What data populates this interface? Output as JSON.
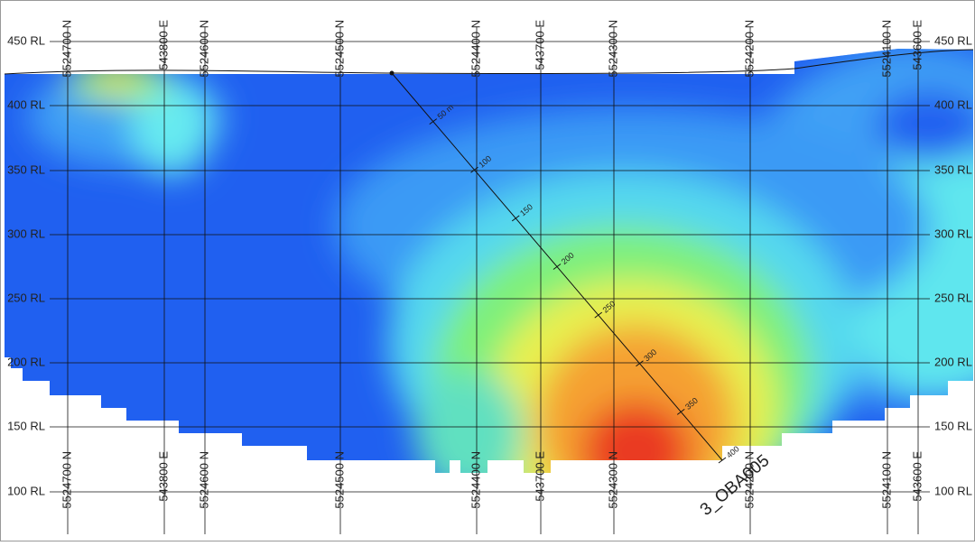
{
  "rl_labels": [
    "450 RL",
    "400 RL",
    "350 RL",
    "300 RL",
    "250 RL",
    "200 RL",
    "150 RL",
    "100 RL"
  ],
  "grid_lines": [
    {
      "label": "5524700 N"
    },
    {
      "label": "543800 E"
    },
    {
      "label": "5524600 N"
    },
    {
      "label": "5524500 N"
    },
    {
      "label": "5524400 N"
    },
    {
      "label": "543700 E"
    },
    {
      "label": "5524300 N"
    },
    {
      "label": "5524200 N"
    },
    {
      "label": "5524100 N"
    },
    {
      "label": "543600 E"
    }
  ],
  "drillhole": {
    "name": "3_OBA005",
    "depth_labels": [
      "50 m",
      "100",
      "150",
      "200",
      "250",
      "300",
      "350",
      "400"
    ]
  }
}
